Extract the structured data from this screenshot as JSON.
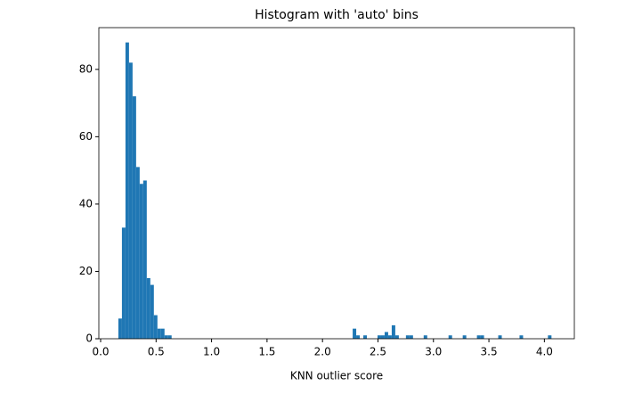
{
  "chart_data": {
    "type": "histogram",
    "title": "Histogram with 'auto' bins",
    "xlabel": "KNN outlier score",
    "color": "#1f77b4",
    "bins": [
      0.16,
      0.192,
      0.224,
      0.256,
      0.288,
      0.32,
      0.352,
      0.384,
      0.416,
      0.448,
      0.48,
      0.512,
      0.544,
      0.576,
      0.608,
      0.64,
      0.672,
      0.704,
      0.736,
      0.768,
      0.8,
      0.832,
      0.864,
      0.896,
      0.928,
      0.96,
      0.992,
      1.024,
      1.056,
      1.088,
      1.12,
      1.152,
      1.184,
      1.216,
      1.248,
      1.28,
      1.312,
      1.344,
      1.376,
      1.408,
      1.44,
      1.472,
      1.504,
      1.536,
      1.568,
      1.6,
      1.632,
      1.664,
      1.696,
      1.728,
      1.76,
      1.792,
      1.824,
      1.856,
      1.888,
      1.92,
      1.952,
      1.984,
      2.016,
      2.048,
      2.08,
      2.112,
      2.144,
      2.176,
      2.208,
      2.24,
      2.272,
      2.304,
      2.336,
      2.368,
      2.4,
      2.432,
      2.464,
      2.496,
      2.528,
      2.56,
      2.592,
      2.624,
      2.656,
      2.688,
      2.72,
      2.752,
      2.784,
      2.816,
      2.848,
      2.88,
      2.912,
      2.944,
      2.976,
      3.008,
      3.04,
      3.072,
      3.104,
      3.136,
      3.168,
      3.2,
      3.232,
      3.264,
      3.296,
      3.328,
      3.36,
      3.392,
      3.424,
      3.456,
      3.488,
      3.52,
      3.552,
      3.584,
      3.616,
      3.648,
      3.68,
      3.712,
      3.744,
      3.776,
      3.808,
      3.84,
      3.872,
      3.904,
      3.936,
      3.968,
      4.0,
      4.032,
      4.064
    ],
    "values": [
      6,
      33,
      88,
      82,
      72,
      51,
      46,
      47,
      18,
      16,
      7,
      3,
      3,
      1,
      1,
      0,
      0,
      0,
      0,
      0,
      0,
      0,
      0,
      0,
      0,
      0,
      0,
      0,
      0,
      0,
      0,
      0,
      0,
      0,
      0,
      0,
      0,
      0,
      0,
      0,
      0,
      0,
      0,
      0,
      0,
      0,
      0,
      0,
      0,
      0,
      0,
      0,
      0,
      0,
      0,
      0,
      0,
      0,
      0,
      0,
      0,
      0,
      0,
      0,
      0,
      0,
      3,
      1,
      0,
      1,
      0,
      0,
      0,
      1,
      1,
      2,
      1,
      4,
      1,
      0,
      0,
      1,
      1,
      0,
      0,
      0,
      1,
      0,
      0,
      0,
      0,
      0,
      0,
      1,
      0,
      0,
      0,
      1,
      0,
      0,
      0,
      1,
      1,
      0,
      0,
      0,
      0,
      1,
      0,
      0,
      0,
      0,
      0,
      1,
      0,
      0,
      0,
      0,
      0,
      0,
      0,
      1
    ],
    "xlim": [
      -0.016,
      4.27
    ],
    "ylim": [
      0,
      92.4
    ],
    "xticks": [
      {
        "value": 0,
        "label": "0.0"
      },
      0.5,
      {
        "value": 1,
        "label": "1.0"
      },
      1.5,
      {
        "value": 2,
        "label": "2.0"
      },
      2.5,
      {
        "value": 3,
        "label": "3.0"
      },
      3.5,
      {
        "value": 4,
        "label": "4.0"
      }
    ],
    "yticks": [
      0,
      20,
      40,
      60,
      80
    ]
  }
}
